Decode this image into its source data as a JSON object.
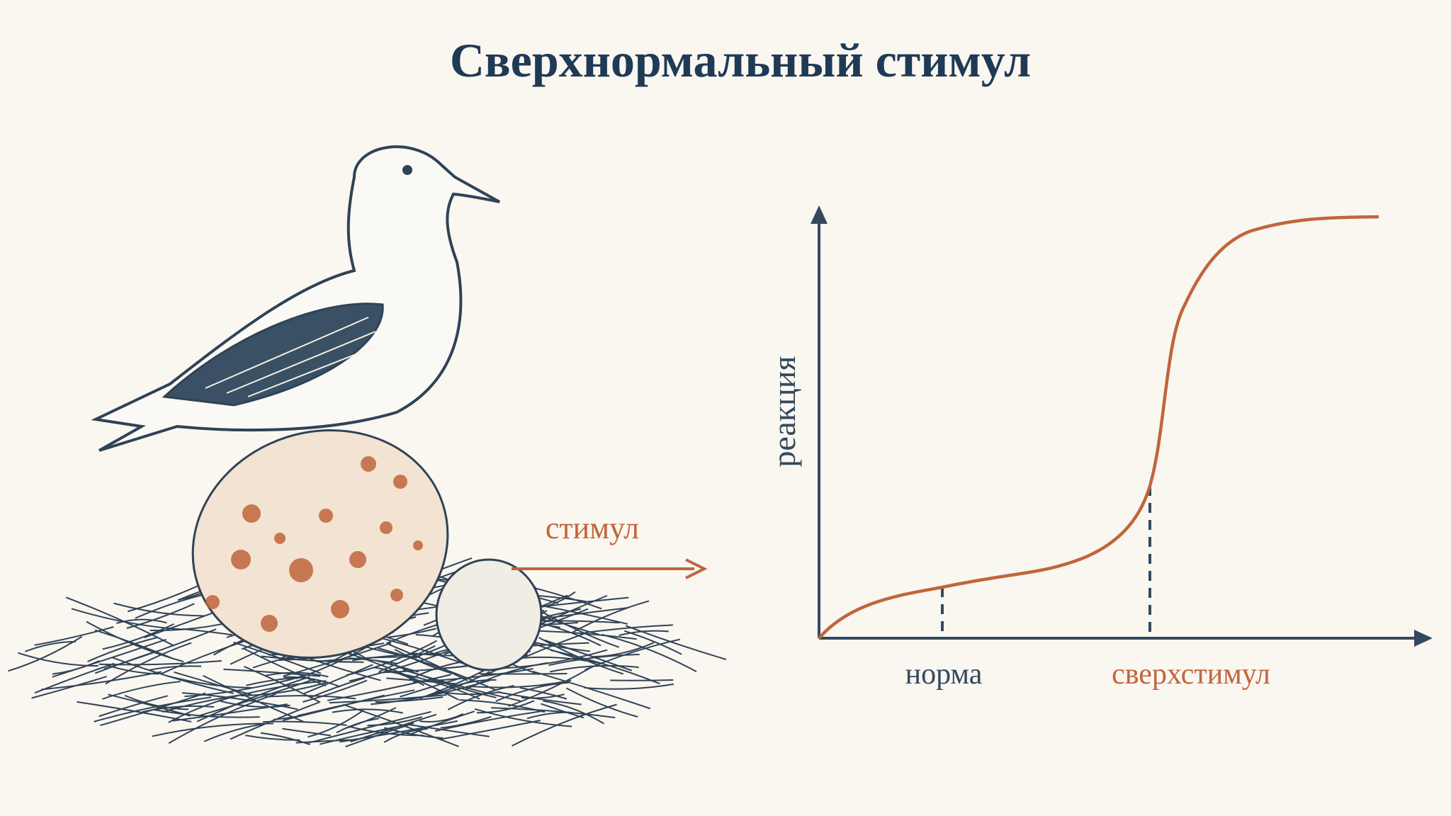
{
  "title": "Сверхнормальный стимул",
  "illustration": {
    "arrow_label": "стимул"
  },
  "graph": {
    "y_axis_label": "реакция",
    "x_markers": [
      "норма",
      "сверхстимул"
    ]
  }
}
